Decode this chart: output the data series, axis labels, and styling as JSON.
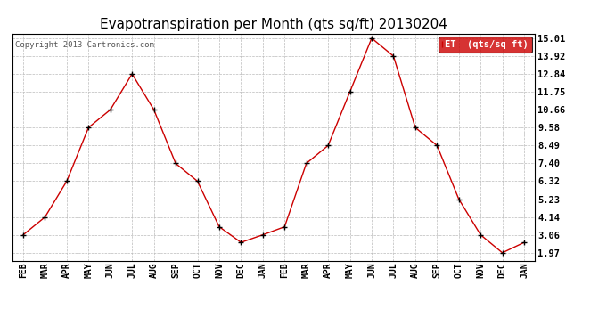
{
  "title": "Evapotranspiration per Month (qts sq/ft) 20130204",
  "copyright": "Copyright 2013 Cartronics.com",
  "legend_label": "ET  (qts/sq ft)",
  "x_labels": [
    "FEB",
    "MAR",
    "APR",
    "MAY",
    "JUN",
    "JUL",
    "AUG",
    "SEP",
    "OCT",
    "NOV",
    "DEC",
    "JAN",
    "FEB",
    "MAR",
    "APR",
    "MAY",
    "JUN",
    "JUL",
    "AUG",
    "SEP",
    "OCT",
    "NOV",
    "DEC",
    "JAN"
  ],
  "y_values": [
    3.06,
    4.14,
    6.32,
    9.58,
    10.66,
    12.84,
    10.66,
    7.4,
    6.32,
    3.55,
    2.6,
    3.06,
    3.55,
    7.4,
    8.49,
    11.75,
    15.01,
    13.92,
    9.58,
    8.49,
    5.23,
    3.06,
    1.97,
    2.6
  ],
  "yticks": [
    1.97,
    3.06,
    4.14,
    5.23,
    6.32,
    7.4,
    8.49,
    9.58,
    10.66,
    11.75,
    12.84,
    13.92,
    15.01
  ],
  "ytick_labels": [
    "1.97",
    "3.06",
    "4.14",
    "5.23",
    "6.32",
    "7.40",
    "8.49",
    "9.58",
    "10.66",
    "11.75",
    "12.84",
    "13.92",
    "15.01"
  ],
  "line_color": "#cc0000",
  "marker_color": "#000000",
  "bg_color": "#ffffff",
  "grid_color": "#bbbbbb",
  "legend_bg": "#cc0000",
  "legend_text_color": "#ffffff",
  "title_fontsize": 11,
  "axis_fontsize": 7,
  "ytick_fontsize": 7.5,
  "copyright_fontsize": 6.5
}
